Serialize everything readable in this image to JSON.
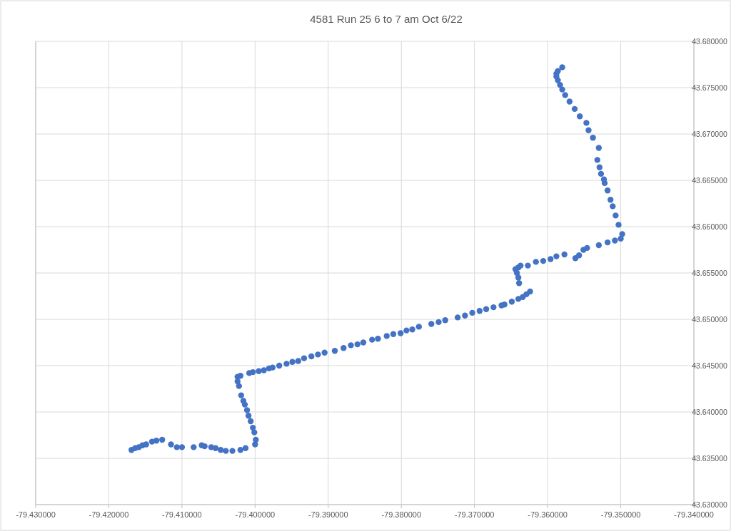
{
  "chart_data": {
    "type": "scatter",
    "title": "4581 Run 25 6 to 7 am Oct 6/22",
    "x": [
      -79.4169,
      -79.4164,
      -79.4159,
      -79.4154,
      -79.4149,
      -79.4141,
      -79.4135,
      -79.4127,
      -79.4115,
      -79.4107,
      -79.41,
      -79.4084,
      -79.4073,
      -79.4069,
      -79.406,
      -79.4054,
      -79.4047,
      -79.404,
      -79.4031,
      -79.402,
      -79.4013,
      -79.4,
      -79.3999,
      -79.4001,
      -79.4003,
      -79.4006,
      -79.4009,
      -79.4011,
      -79.4014,
      -79.4016,
      -79.4019,
      -79.4022,
      -79.4024,
      -79.4024,
      -79.402,
      -79.4008,
      -79.4003,
      -79.3995,
      -79.3988,
      -79.3981,
      -79.3976,
      -79.3967,
      -79.3957,
      -79.3949,
      -79.3941,
      -79.3933,
      -79.3923,
      -79.3914,
      -79.3905,
      -79.3891,
      -79.3879,
      -79.3869,
      -79.386,
      -79.3852,
      -79.384,
      -79.3832,
      -79.382,
      -79.3811,
      -79.3801,
      -79.3793,
      -79.3785,
      -79.3776,
      -79.3759,
      -79.3749,
      -79.374,
      -79.3723,
      -79.3713,
      -79.3703,
      -79.3693,
      -79.3684,
      -79.3674,
      -79.3663,
      -79.3659,
      -79.3649,
      -79.364,
      -79.3634,
      -79.3629,
      -79.3624,
      -79.3639,
      -79.364,
      -79.3642,
      -79.3644,
      -79.364,
      -79.3637,
      -79.3627,
      -79.3616,
      -79.3606,
      -79.3596,
      -79.3588,
      -79.3577,
      -79.3562,
      -79.3557,
      -79.3551,
      -79.3546,
      -79.353,
      -79.3518,
      -79.3508,
      -79.35,
      -79.3498,
      -79.3503,
      -79.3507,
      -79.3511,
      -79.3514,
      -79.3518,
      -79.3522,
      -79.3523,
      -79.3527,
      -79.3529,
      -79.3532,
      -79.353,
      -79.3538,
      -79.3544,
      -79.3547,
      -79.3556,
      -79.3563,
      -79.357,
      -79.3576,
      -79.358,
      -79.3583,
      -79.3586,
      -79.3588,
      -79.3588,
      -79.3586,
      -79.358
    ],
    "series": [
      {
        "color": "#4472c4",
        "values": [
          43.6359,
          43.6361,
          43.6362,
          43.6364,
          43.6365,
          43.6368,
          43.6369,
          43.637,
          43.6365,
          43.6362,
          43.6362,
          43.6362,
          43.6364,
          43.6363,
          43.6362,
          43.6361,
          43.6359,
          43.6358,
          43.6358,
          43.6359,
          43.6361,
          43.6365,
          43.637,
          43.6378,
          43.6383,
          43.639,
          43.6396,
          43.6402,
          43.6408,
          43.6412,
          43.6418,
          43.6428,
          43.6433,
          43.6438,
          43.6439,
          43.6442,
          43.6443,
          43.6444,
          43.6445,
          43.6447,
          43.6448,
          43.645,
          43.6452,
          43.6454,
          43.6455,
          43.6458,
          43.646,
          43.6462,
          43.6464,
          43.6466,
          43.6469,
          43.6472,
          43.6473,
          43.6475,
          43.6478,
          43.6479,
          43.6482,
          43.6484,
          43.6485,
          43.6488,
          43.6489,
          43.6492,
          43.6495,
          43.6497,
          43.6499,
          43.6502,
          43.6504,
          43.6507,
          43.6509,
          43.6511,
          43.6513,
          43.6515,
          43.6516,
          43.6519,
          43.6522,
          43.6524,
          43.6527,
          43.653,
          43.6539,
          43.6545,
          43.655,
          43.6554,
          43.6556,
          43.6558,
          43.6558,
          43.6562,
          43.6563,
          43.6565,
          43.6568,
          43.657,
          43.6566,
          43.6569,
          43.6575,
          43.6577,
          43.658,
          43.6583,
          43.6585,
          43.6587,
          43.6592,
          43.6602,
          43.6612,
          43.6622,
          43.6629,
          43.6639,
          43.6647,
          43.6651,
          43.6657,
          43.6664,
          43.6672,
          43.6685,
          43.6696,
          43.6704,
          43.6712,
          43.6719,
          43.6727,
          43.6735,
          43.6742,
          43.6748,
          43.6753,
          43.6758,
          43.6762,
          43.6765,
          43.6768,
          43.6772
        ]
      }
    ],
    "xlim": [
      -79.43,
      -79.34
    ],
    "xticks": [
      {
        "value": -79.43,
        "label": "-79.430000"
      },
      {
        "value": -79.42,
        "label": "-79.420000"
      },
      {
        "value": -79.41,
        "label": "-79.410000"
      },
      {
        "value": -79.4,
        "label": "-79.400000"
      },
      {
        "value": -79.39,
        "label": "-79.390000"
      },
      {
        "value": -79.38,
        "label": "-79.380000"
      },
      {
        "value": -79.37,
        "label": "-79.370000"
      },
      {
        "value": -79.36,
        "label": "-79.360000"
      },
      {
        "value": -79.35,
        "label": "-79.350000"
      },
      {
        "value": -79.34,
        "label": "-79.340000"
      }
    ],
    "ylim": [
      43.63,
      43.68
    ],
    "yticks": [
      {
        "value": 43.63,
        "label": "43.630000"
      },
      {
        "value": 43.635,
        "label": "43.635000"
      },
      {
        "value": 43.64,
        "label": "43.640000"
      },
      {
        "value": 43.645,
        "label": "43.645000"
      },
      {
        "value": 43.65,
        "label": "43.650000"
      },
      {
        "value": 43.655,
        "label": "43.655000"
      },
      {
        "value": 43.66,
        "label": "43.660000"
      },
      {
        "value": 43.665,
        "label": "43.665000"
      },
      {
        "value": 43.67,
        "label": "43.670000"
      },
      {
        "value": 43.675,
        "label": "43.675000"
      },
      {
        "value": 43.68,
        "label": "43.680000"
      }
    ],
    "grid": true,
    "marker": "circle"
  }
}
